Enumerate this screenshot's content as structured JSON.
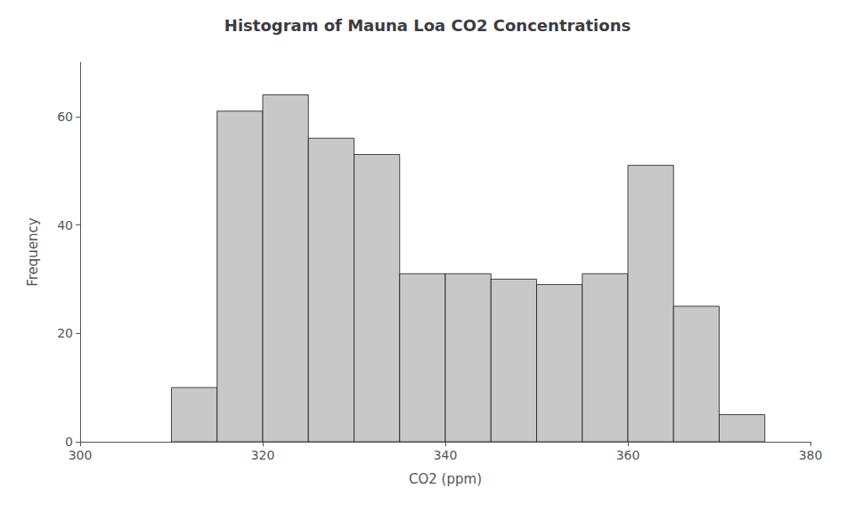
{
  "chart_data": {
    "type": "histogram",
    "title": "Histogram of Mauna Loa CO2 Concentrations",
    "xlabel": "CO2 (ppm)",
    "ylabel": "Frequency",
    "bins": [
      310,
      315,
      320,
      325,
      330,
      335,
      340,
      345,
      350,
      355,
      360,
      365,
      370,
      375
    ],
    "values": [
      10,
      61,
      64,
      56,
      53,
      31,
      31,
      30,
      29,
      31,
      51,
      25,
      5
    ],
    "color": "#C8C8C8",
    "xlim": [
      300,
      380
    ],
    "ylim": [
      0,
      70
    ],
    "xticks": [
      300,
      320,
      340,
      360,
      380
    ],
    "yticks": [
      0,
      20,
      40,
      60
    ],
    "grid": false
  }
}
